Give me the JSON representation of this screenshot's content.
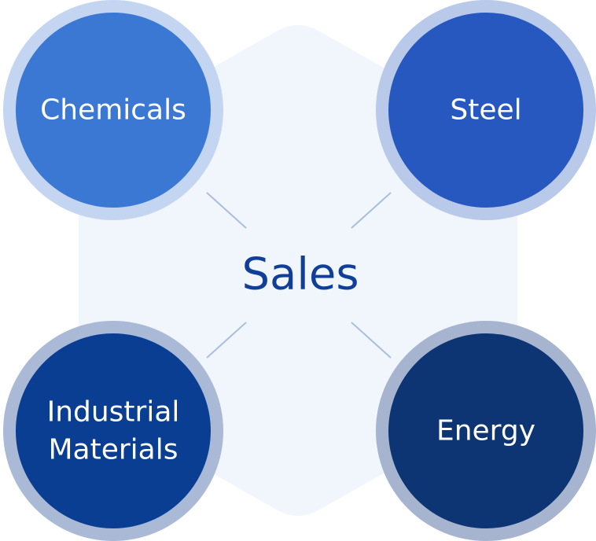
{
  "center": {
    "label": "Sales",
    "background_color": "#f1f6fd",
    "text_color": "#0f3f98"
  },
  "nodes": [
    {
      "id": "chemicals",
      "label_lines": [
        "Chemicals"
      ],
      "fill": "#3b78d3",
      "ring": "#c3d5f0"
    },
    {
      "id": "steel",
      "label_lines": [
        "Steel"
      ],
      "fill": "#2758c0",
      "ring": "#b9c9ea"
    },
    {
      "id": "industrial-materials",
      "label_lines": [
        "Industrial",
        "Materials"
      ],
      "fill": "#0a3e93",
      "ring": "#a9b9d6"
    },
    {
      "id": "energy",
      "label_lines": [
        "Energy"
      ],
      "fill": "#0d3573",
      "ring": "#a6b4cf"
    }
  ],
  "connector_color": "#a9bedb"
}
